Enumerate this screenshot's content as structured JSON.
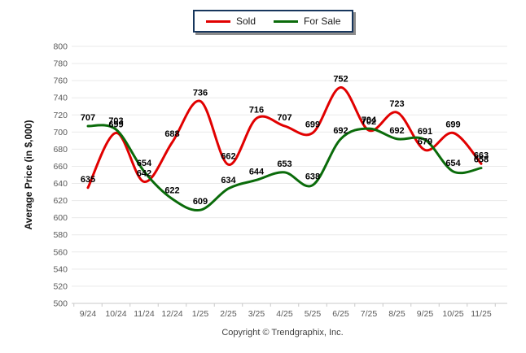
{
  "y_axis_title": "Average Price (in $,000)",
  "footer": {
    "copyright": "Copyright © Trendgraphix, Inc."
  },
  "colors": {
    "sold": "#e10000",
    "for_sale": "#0a6b0a",
    "gridline": "#e9e9e9",
    "axis_line": "#c9c9c9",
    "tick_label": "#595959",
    "data_label": "#000000",
    "legend_border": "#17365d"
  },
  "chart_data": {
    "type": "line",
    "title": "",
    "xlabel": "",
    "ylabel": "Average Price (in $,000)",
    "x": [
      "9/24",
      "10/24",
      "11/24",
      "12/24",
      "1/25",
      "2/25",
      "3/25",
      "4/25",
      "5/25",
      "6/25",
      "7/25",
      "8/25",
      "9/25",
      "10/25",
      "11/25"
    ],
    "series": [
      {
        "name": "Sold",
        "color": "#e10000",
        "values": [
          635,
          699,
          642,
          688,
          736,
          662,
          716,
          707,
          699,
          752,
          702,
          723,
          679,
          699,
          663
        ]
      },
      {
        "name": "For Sale",
        "color": "#0a6b0a",
        "values": [
          707,
          703,
          654,
          622,
          609,
          634,
          644,
          653,
          638,
          692,
          704,
          692,
          691,
          654,
          658
        ]
      }
    ],
    "ylim": [
      500,
      800
    ],
    "ytick_step": 20,
    "y_ticks": [
      500,
      520,
      540,
      560,
      580,
      600,
      620,
      640,
      660,
      680,
      700,
      720,
      740,
      760,
      780,
      800
    ],
    "grid": true,
    "smooth": true,
    "legend_position": "top-center",
    "data_labels": true
  }
}
